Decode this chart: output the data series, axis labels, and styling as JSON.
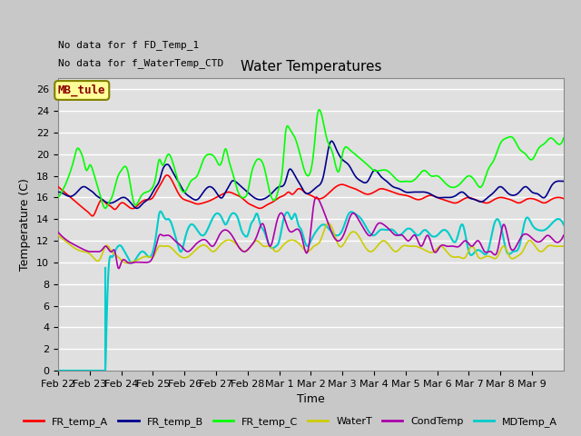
{
  "title": "Water Temperatures",
  "xlabel": "Time",
  "ylabel": "Temperature (C)",
  "ylim": [
    0,
    27
  ],
  "yticks": [
    0,
    2,
    4,
    6,
    8,
    10,
    12,
    14,
    16,
    18,
    20,
    22,
    24,
    26
  ],
  "annotations_top": [
    "No data for f FD_Temp_1",
    "No data for f_WaterTemp_CTD"
  ],
  "mb_tule_label": "MB_tule",
  "legend_entries": [
    "FR_temp_A",
    "FR_temp_B",
    "FR_temp_C",
    "WaterT",
    "CondTemp",
    "MDTemp_A"
  ],
  "legend_colors": [
    "#ff0000",
    "#00008b",
    "#00ff00",
    "#ffff00",
    "#800080",
    "#00ffff"
  ],
  "fig_bg": "#c8c8c8",
  "plot_bg": "#e8e8e8",
  "grid_color": "#ffffff",
  "xtick_labels": [
    "Feb 22",
    "Feb 23",
    "Feb 24",
    "Feb 25",
    "Feb 26",
    "Feb 27",
    "Feb 28",
    "Mar 1",
    "Mar 2",
    "Mar 3",
    "Mar 4",
    "Mar 5",
    "Mar 6",
    "Mar 7",
    "Mar 8",
    "Mar 9"
  ],
  "FR_temp_A_t": [
    0.0,
    0.2,
    0.4,
    0.6,
    0.8,
    1.0,
    1.1,
    1.2,
    1.3,
    1.4,
    1.5,
    1.6,
    1.7,
    1.8,
    1.9,
    2.0,
    2.2,
    2.4,
    2.6,
    2.8,
    3.0,
    3.1,
    3.2,
    3.3,
    3.4,
    3.5,
    3.7,
    3.9,
    4.0,
    4.2,
    4.4,
    4.6,
    4.8,
    5.0,
    5.2,
    5.4,
    5.6,
    5.8,
    6.0,
    6.2,
    6.4,
    6.6,
    6.8,
    7.0,
    7.2,
    7.3,
    7.4,
    7.5,
    7.6,
    7.8,
    8.0,
    8.2,
    8.4,
    8.6,
    8.8,
    9.0,
    9.2,
    9.4,
    9.6,
    9.8,
    10.0,
    10.2,
    10.4,
    10.6,
    10.8,
    11.0,
    11.2,
    11.4,
    11.6,
    11.8,
    12.0,
    12.2,
    12.4,
    12.6,
    12.8,
    13.0,
    13.2,
    13.4,
    13.6,
    13.8,
    14.0,
    14.2,
    14.4,
    14.6,
    14.8,
    15.0,
    15.2,
    15.4,
    15.6,
    15.8,
    16.0
  ],
  "FR_temp_A_v": [
    17.0,
    16.5,
    16.0,
    15.5,
    15.0,
    14.5,
    14.3,
    14.8,
    15.5,
    15.8,
    15.5,
    15.3,
    15.1,
    14.9,
    15.2,
    15.5,
    15.2,
    15.0,
    15.5,
    15.8,
    16.0,
    16.5,
    17.0,
    17.5,
    18.0,
    18.0,
    17.0,
    16.0,
    15.8,
    15.6,
    15.4,
    15.5,
    15.7,
    16.0,
    16.3,
    16.5,
    16.3,
    16.0,
    15.5,
    15.2,
    15.0,
    15.3,
    15.6,
    16.0,
    16.3,
    16.5,
    16.3,
    16.5,
    16.8,
    16.5,
    16.2,
    15.9,
    16.0,
    16.5,
    17.0,
    17.2,
    17.0,
    16.8,
    16.5,
    16.3,
    16.5,
    16.8,
    16.7,
    16.5,
    16.3,
    16.2,
    16.0,
    15.8,
    16.0,
    16.2,
    16.0,
    15.8,
    15.6,
    15.5,
    15.8,
    16.0,
    15.8,
    15.6,
    15.5,
    15.8,
    16.0,
    15.9,
    15.7,
    15.5,
    15.8,
    15.9,
    15.7,
    15.5,
    15.8,
    16.0,
    15.9
  ],
  "FR_temp_B_t": [
    0.0,
    0.2,
    0.4,
    0.6,
    0.8,
    1.0,
    1.1,
    1.2,
    1.3,
    1.4,
    1.5,
    1.7,
    1.9,
    2.1,
    2.3,
    2.5,
    2.7,
    2.9,
    3.0,
    3.1,
    3.2,
    3.3,
    3.4,
    3.5,
    3.6,
    3.8,
    4.0,
    4.2,
    4.4,
    4.6,
    4.8,
    5.0,
    5.2,
    5.3,
    5.4,
    5.5,
    5.6,
    5.8,
    6.0,
    6.2,
    6.4,
    6.6,
    6.8,
    7.0,
    7.2,
    7.3,
    7.4,
    7.5,
    7.6,
    7.7,
    7.8,
    8.0,
    8.2,
    8.4,
    8.6,
    8.8,
    9.0,
    9.2,
    9.4,
    9.6,
    9.8,
    10.0,
    10.2,
    10.4,
    10.6,
    10.8,
    11.0,
    11.2,
    11.4,
    11.6,
    11.8,
    12.0,
    12.2,
    12.4,
    12.6,
    12.8,
    13.0,
    13.2,
    13.4,
    13.6,
    13.8,
    14.0,
    14.2,
    14.4,
    14.6,
    14.8,
    15.0,
    15.2,
    15.4,
    15.6,
    15.8,
    16.0
  ],
  "FR_temp_B_v": [
    16.5,
    16.3,
    16.1,
    16.5,
    17.0,
    16.7,
    16.5,
    16.2,
    16.0,
    15.8,
    15.6,
    15.5,
    15.8,
    16.0,
    15.5,
    15.0,
    15.5,
    16.0,
    16.5,
    17.0,
    17.5,
    18.5,
    19.0,
    19.0,
    18.5,
    17.5,
    16.5,
    16.0,
    15.8,
    16.5,
    17.0,
    16.5,
    16.0,
    16.5,
    17.0,
    17.5,
    17.5,
    17.0,
    16.5,
    16.0,
    15.8,
    16.0,
    16.5,
    17.0,
    17.5,
    18.5,
    18.5,
    18.0,
    17.5,
    17.0,
    16.5,
    16.5,
    17.0,
    18.0,
    21.0,
    20.5,
    19.5,
    19.0,
    18.0,
    17.5,
    17.5,
    18.5,
    18.0,
    17.5,
    17.0,
    16.8,
    16.5,
    16.5,
    16.5,
    16.5,
    16.3,
    16.0,
    16.0,
    16.0,
    16.2,
    16.5,
    16.0,
    15.8,
    15.6,
    16.0,
    16.5,
    17.0,
    16.5,
    16.2,
    16.5,
    17.0,
    16.5,
    16.3,
    16.0,
    17.0,
    17.5,
    17.5
  ],
  "FR_temp_C_t": [
    0.0,
    0.2,
    0.4,
    0.5,
    0.6,
    0.7,
    0.8,
    0.9,
    1.0,
    1.1,
    1.2,
    1.3,
    1.4,
    1.5,
    1.6,
    1.7,
    1.8,
    1.9,
    2.0,
    2.2,
    2.4,
    2.6,
    2.8,
    3.0,
    3.1,
    3.2,
    3.3,
    3.4,
    3.5,
    3.6,
    3.8,
    4.0,
    4.2,
    4.4,
    4.6,
    4.8,
    5.0,
    5.1,
    5.2,
    5.3,
    5.4,
    5.5,
    5.7,
    5.9,
    6.0,
    6.1,
    6.2,
    6.3,
    6.4,
    6.5,
    6.7,
    6.9,
    7.0,
    7.1,
    7.2,
    7.3,
    7.4,
    7.5,
    7.7,
    7.9,
    8.0,
    8.1,
    8.2,
    8.3,
    8.5,
    8.7,
    8.9,
    9.0,
    9.2,
    9.4,
    9.6,
    9.8,
    10.0,
    10.2,
    10.4,
    10.6,
    10.8,
    11.0,
    11.2,
    11.4,
    11.6,
    11.8,
    12.0,
    12.2,
    12.4,
    12.6,
    12.8,
    13.0,
    13.2,
    13.4,
    13.6,
    13.8,
    14.0,
    14.2,
    14.4,
    14.6,
    14.8,
    15.0,
    15.2,
    15.4,
    15.6,
    15.8,
    16.0
  ],
  "FR_temp_C_v": [
    16.0,
    17.0,
    18.5,
    19.5,
    20.5,
    20.3,
    19.5,
    18.5,
    19.0,
    18.5,
    17.5,
    16.5,
    15.5,
    15.0,
    15.5,
    16.0,
    17.0,
    18.0,
    18.5,
    18.5,
    15.5,
    16.0,
    16.5,
    17.0,
    18.0,
    19.5,
    19.0,
    19.5,
    20.0,
    19.5,
    17.5,
    16.5,
    17.5,
    18.0,
    19.5,
    20.0,
    19.5,
    19.0,
    19.5,
    20.5,
    19.5,
    18.5,
    16.5,
    16.0,
    16.5,
    18.0,
    19.0,
    19.5,
    19.5,
    19.0,
    16.5,
    16.0,
    17.0,
    18.5,
    22.0,
    22.5,
    22.0,
    21.5,
    19.5,
    18.0,
    18.5,
    20.5,
    23.5,
    24.0,
    21.5,
    20.0,
    18.5,
    20.0,
    20.5,
    20.0,
    19.5,
    19.0,
    18.5,
    18.5,
    18.5,
    18.0,
    17.5,
    17.5,
    17.5,
    18.0,
    18.5,
    18.0,
    18.0,
    17.5,
    17.0,
    17.0,
    17.5,
    18.0,
    17.5,
    17.0,
    18.5,
    19.5,
    21.0,
    21.5,
    21.5,
    20.5,
    20.0,
    19.5,
    20.5,
    21.0,
    21.5,
    21.0,
    21.5
  ],
  "WaterT_t": [
    0.0,
    0.3,
    0.6,
    0.8,
    1.0,
    1.1,
    1.2,
    1.3,
    1.4,
    1.5,
    1.7,
    1.9,
    2.1,
    2.3,
    2.5,
    2.7,
    2.9,
    3.0,
    3.1,
    3.2,
    3.3,
    3.5,
    3.7,
    3.9,
    4.1,
    4.3,
    4.5,
    4.7,
    4.9,
    5.1,
    5.3,
    5.5,
    5.7,
    5.9,
    6.1,
    6.3,
    6.5,
    6.7,
    6.9,
    7.1,
    7.3,
    7.5,
    7.7,
    7.9,
    8.1,
    8.3,
    8.5,
    8.7,
    8.9,
    9.1,
    9.3,
    9.5,
    9.7,
    9.9,
    10.1,
    10.3,
    10.5,
    10.7,
    10.9,
    11.1,
    11.3,
    11.5,
    11.7,
    11.9,
    12.1,
    12.3,
    12.5,
    12.7,
    12.9,
    13.1,
    13.3,
    13.5,
    13.7,
    13.9,
    14.1,
    14.3,
    14.5,
    14.7,
    14.9,
    15.1,
    15.3,
    15.5,
    15.7,
    15.9,
    16.0
  ],
  "WaterT_v": [
    12.5,
    11.8,
    11.2,
    11.0,
    10.8,
    10.5,
    10.2,
    10.2,
    10.8,
    11.5,
    11.0,
    10.5,
    10.0,
    10.0,
    10.2,
    10.5,
    10.5,
    10.5,
    11.0,
    11.5,
    11.5,
    11.5,
    11.0,
    10.5,
    10.5,
    11.0,
    11.5,
    11.5,
    11.0,
    11.5,
    12.0,
    12.0,
    11.5,
    11.0,
    11.5,
    12.0,
    11.5,
    11.5,
    11.0,
    11.5,
    12.0,
    12.0,
    11.5,
    11.0,
    11.5,
    12.0,
    13.5,
    13.0,
    11.5,
    12.0,
    12.8,
    12.5,
    11.5,
    11.0,
    11.5,
    12.0,
    11.5,
    11.0,
    11.5,
    11.5,
    11.5,
    11.3,
    11.0,
    11.0,
    11.5,
    11.0,
    10.5,
    10.5,
    10.5,
    11.5,
    10.5,
    10.5,
    10.5,
    10.5,
    11.5,
    10.5,
    10.5,
    11.0,
    12.0,
    11.5,
    11.0,
    11.5,
    11.5,
    11.5,
    11.5
  ],
  "CondTemp_t": [
    0.0,
    0.3,
    0.6,
    0.8,
    1.0,
    1.1,
    1.2,
    1.3,
    1.4,
    1.5,
    1.6,
    1.7,
    1.8,
    1.9,
    2.0,
    2.2,
    2.4,
    2.6,
    2.8,
    3.0,
    3.1,
    3.2,
    3.3,
    3.5,
    3.7,
    3.9,
    4.1,
    4.3,
    4.5,
    4.7,
    4.9,
    5.1,
    5.3,
    5.5,
    5.7,
    5.9,
    6.1,
    6.3,
    6.5,
    6.7,
    6.9,
    7.1,
    7.3,
    7.5,
    7.7,
    7.9,
    8.0,
    8.1,
    8.2,
    8.3,
    8.5,
    8.7,
    8.9,
    9.1,
    9.3,
    9.5,
    9.7,
    9.9,
    10.1,
    10.3,
    10.5,
    10.7,
    10.9,
    11.1,
    11.3,
    11.5,
    11.7,
    11.9,
    12.1,
    12.3,
    12.5,
    12.7,
    12.9,
    13.1,
    13.3,
    13.5,
    13.7,
    13.9,
    14.1,
    14.3,
    14.5,
    14.7,
    14.9,
    15.1,
    15.3,
    15.5,
    15.7,
    15.9,
    16.0
  ],
  "CondTemp_v": [
    12.8,
    12.0,
    11.5,
    11.2,
    11.0,
    11.0,
    11.0,
    11.0,
    11.2,
    11.5,
    11.2,
    11.0,
    11.0,
    9.5,
    10.0,
    10.0,
    10.0,
    10.0,
    10.0,
    10.5,
    11.5,
    12.5,
    12.5,
    12.5,
    12.0,
    11.5,
    11.0,
    11.5,
    12.0,
    12.0,
    11.5,
    12.5,
    13.0,
    12.5,
    11.5,
    11.0,
    11.5,
    12.5,
    13.5,
    11.5,
    13.5,
    14.5,
    13.0,
    13.0,
    12.5,
    11.0,
    13.0,
    15.5,
    16.0,
    15.5,
    14.0,
    12.5,
    12.0,
    13.0,
    14.5,
    14.0,
    13.0,
    12.5,
    13.5,
    13.5,
    13.0,
    12.5,
    12.5,
    12.0,
    12.5,
    11.5,
    12.5,
    11.0,
    11.5,
    11.5,
    11.5,
    11.5,
    12.0,
    11.5,
    12.0,
    11.0,
    11.0,
    11.0,
    13.5,
    11.5,
    11.5,
    12.5,
    12.5,
    12.0,
    12.0,
    12.5,
    12.0,
    12.0,
    12.5
  ],
  "MDTemp_A_t": [
    0.0,
    1.5,
    1.6,
    1.7,
    1.8,
    1.9,
    2.0,
    2.1,
    2.2,
    2.3,
    2.5,
    2.7,
    2.9,
    3.0,
    3.1,
    3.2,
    3.3,
    3.4,
    3.5,
    3.6,
    3.7,
    3.8,
    3.9,
    4.0,
    4.2,
    4.4,
    4.6,
    4.8,
    5.0,
    5.2,
    5.3,
    5.4,
    5.5,
    5.6,
    5.7,
    5.8,
    5.9,
    6.0,
    6.1,
    6.2,
    6.3,
    6.4,
    6.5,
    6.7,
    6.9,
    7.0,
    7.1,
    7.2,
    7.3,
    7.4,
    7.5,
    7.6,
    7.7,
    7.8,
    7.9,
    8.0,
    8.2,
    8.4,
    8.6,
    8.8,
    9.0,
    9.2,
    9.4,
    9.6,
    9.8,
    10.0,
    10.2,
    10.4,
    10.6,
    10.8,
    11.0,
    11.2,
    11.4,
    11.6,
    11.8,
    12.0,
    12.2,
    12.4,
    12.6,
    12.8,
    13.0,
    13.2,
    13.4,
    13.6,
    13.8,
    14.0,
    14.2,
    14.4,
    14.6,
    14.8,
    15.0,
    15.2,
    15.4,
    15.6,
    15.8,
    16.0
  ],
  "MDTemp_A_v": [
    0.0,
    0.0,
    9.5,
    10.5,
    11.0,
    11.5,
    11.5,
    11.0,
    10.5,
    10.0,
    10.5,
    11.0,
    10.5,
    11.0,
    12.5,
    14.5,
    14.5,
    14.0,
    14.0,
    13.5,
    12.5,
    11.5,
    11.0,
    12.0,
    13.5,
    13.0,
    12.5,
    13.5,
    14.5,
    14.0,
    13.5,
    14.0,
    14.5,
    14.5,
    14.0,
    13.0,
    12.5,
    12.5,
    13.5,
    14.0,
    14.5,
    13.5,
    13.0,
    11.5,
    11.5,
    12.0,
    13.5,
    14.5,
    14.5,
    14.0,
    14.5,
    13.5,
    13.0,
    12.0,
    11.5,
    12.0,
    13.0,
    13.5,
    13.0,
    12.5,
    13.0,
    14.5,
    14.5,
    14.0,
    13.0,
    12.5,
    13.0,
    13.0,
    13.0,
    12.5,
    13.0,
    13.0,
    12.5,
    13.0,
    12.5,
    12.5,
    13.0,
    12.5,
    12.0,
    13.5,
    11.0,
    11.0,
    11.0,
    11.0,
    13.5,
    13.5,
    11.0,
    11.0,
    11.5,
    14.0,
    13.5,
    13.0,
    13.0,
    13.5,
    14.0,
    13.5
  ]
}
